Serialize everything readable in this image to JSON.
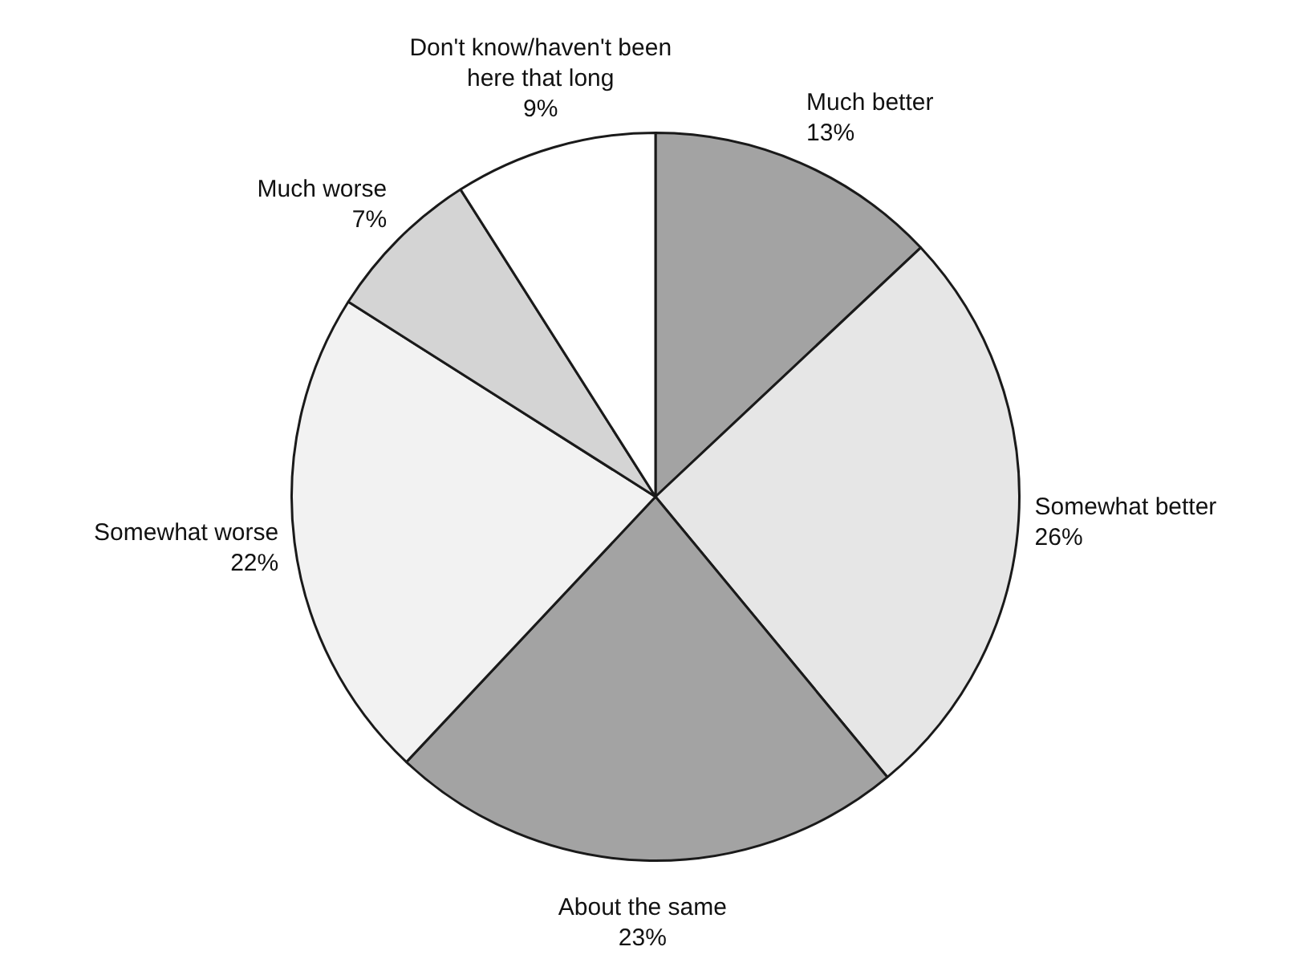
{
  "chart_data": {
    "type": "pie",
    "categories": [
      "Much better",
      "Somewhat better",
      "About the same",
      "Somewhat worse",
      "Much worse",
      "Don't know/haven't been here that long"
    ],
    "values": [
      13,
      26,
      23,
      22,
      7,
      9
    ],
    "value_labels": [
      "13%",
      "26%",
      "23%",
      "22%",
      "7%",
      "9%"
    ],
    "colors": [
      "#a3a3a3",
      "#e6e6e6",
      "#a3a3a3",
      "#f2f2f2",
      "#d4d4d4",
      "#ffffff"
    ],
    "legend": false
  }
}
